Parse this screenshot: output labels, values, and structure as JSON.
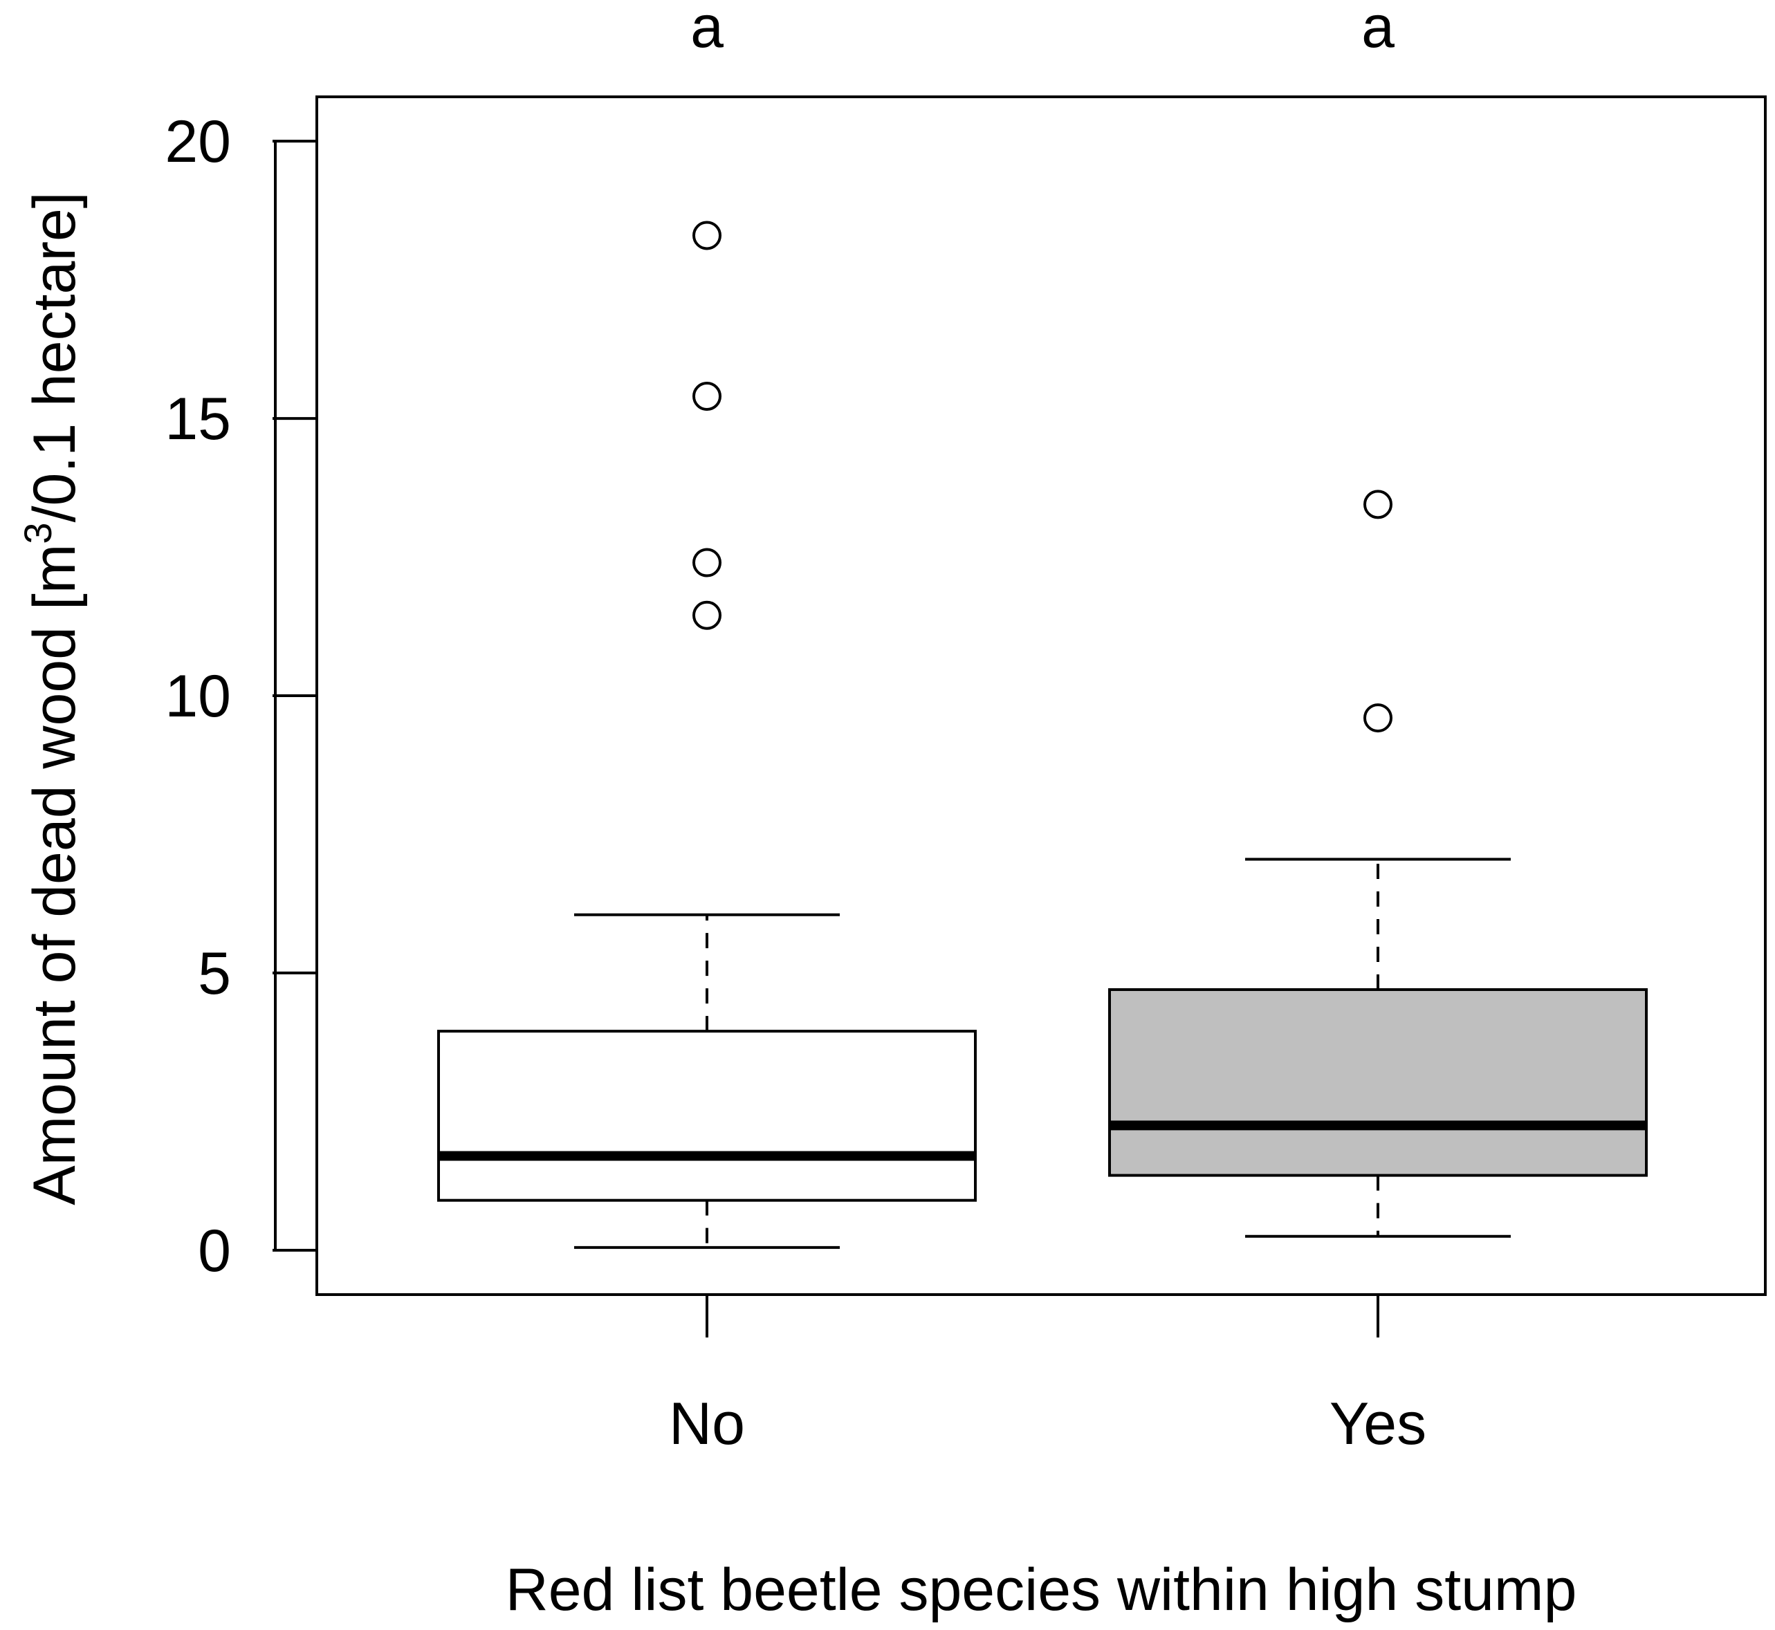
{
  "chart_data": {
    "type": "box",
    "title": "",
    "xlabel": "Red list beetle species within high stump",
    "ylabel_main": "Amount of dead wood [m",
    "ylabel_sup": "3",
    "ylabel_rest": "/0.1 hectare]",
    "ylim": [
      -0.8,
      20.8
    ],
    "yticks": [
      0,
      5,
      10,
      15,
      20
    ],
    "ytick_labels": [
      "0",
      "5",
      "10",
      "15",
      "20"
    ],
    "categories": [
      "No",
      "Yes"
    ],
    "significance_letters": [
      "a",
      "a"
    ],
    "boxes": [
      {
        "name": "No",
        "fill": "#ffffff",
        "whisker_low": 0.05,
        "q1": 0.9,
        "median": 1.7,
        "q3": 3.95,
        "whisker_high": 6.05,
        "outliers": [
          11.45,
          12.4,
          15.4,
          18.3
        ]
      },
      {
        "name": "Yes",
        "fill": "#bfbfbf",
        "whisker_low": 0.25,
        "q1": 1.35,
        "median": 2.25,
        "q3": 4.7,
        "whisker_high": 7.05,
        "outliers": [
          9.6,
          13.45
        ]
      }
    ]
  }
}
